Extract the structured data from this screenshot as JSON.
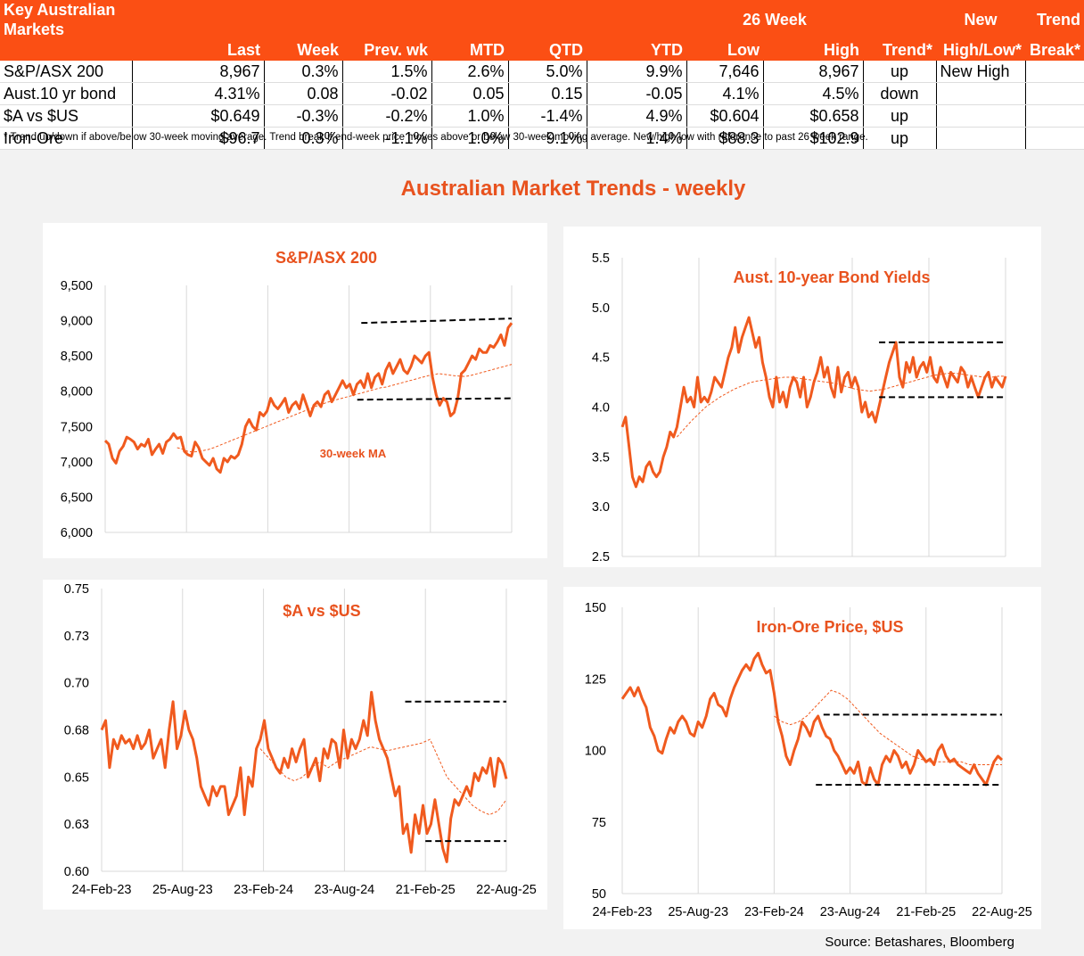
{
  "table": {
    "header_title": "Key Australian Markets",
    "header_26week": "26 Week",
    "col_last": "Last",
    "col_week": "Week",
    "col_prev": "Prev. wk",
    "col_mtd": "MTD",
    "col_qtd": "QTD",
    "col_ytd": "YTD",
    "col_low": "Low",
    "col_high": "High",
    "col_trend": "Trend*",
    "col_newhl_1": "New",
    "col_newhl_2": "High/Low*",
    "col_break_1": "Trend",
    "col_break_2": "Break*",
    "rows": [
      {
        "name": "S&P/ASX 200",
        "last": "8,967",
        "week": "0.3%",
        "prev": "1.5%",
        "mtd": "2.6%",
        "qtd": "5.0%",
        "ytd": "9.9%",
        "low": "7,646",
        "high": "8,967",
        "trend": "up",
        "newhl": "New High",
        "brk": ""
      },
      {
        "name": "Aust.10 yr bond",
        "last": "4.31%",
        "week": "0.08",
        "prev": "-0.02",
        "mtd": "0.05",
        "qtd": "0.15",
        "ytd": "-0.05",
        "low": "4.1%",
        "high": "4.5%",
        "trend": "down",
        "newhl": "",
        "brk": ""
      },
      {
        "name": "$A vs $US",
        "last": "$0.649",
        "week": "-0.3%",
        "prev": "-0.2%",
        "mtd": "1.0%",
        "qtd": "-1.4%",
        "ytd": "4.9%",
        "low": "$0.604",
        "high": "$0.658",
        "trend": "up",
        "newhl": "",
        "brk": ""
      },
      {
        "name": "Iron-Ore",
        "last": "$96.7",
        "week": "0.3%",
        "prev": "-1.1%",
        "mtd": "1.0%",
        "qtd": "9.1%",
        "ytd": "1.4%",
        "low": "$88.3",
        "high": "$102.9",
        "trend": "up",
        "newhl": "",
        "brk": ""
      }
    ],
    "footnote": "*  Trend up/down if above/below 30-week moving average. Trend break if end-week price moves above or below 30-week moving average.  New/high low with reference to past 26 week range."
  },
  "main_title": "Australian Market Trends - weekly",
  "source": "Source:  Betashares, Bloomberg",
  "colors": {
    "accent": "#fb4f14",
    "series": "#f05a1e",
    "ma": "#f05a1e",
    "band": "#000000",
    "grid": "#d9d9d9"
  },
  "chart_data": [
    {
      "type": "line",
      "title": "S&P/ASX 200",
      "annotation": "30-week MA",
      "y_ticks": [
        "9,500",
        "9,000",
        "8,500",
        "8,000",
        "7,500",
        "7,000",
        "6,500",
        "6,000"
      ],
      "ylim": [
        6000,
        9500
      ],
      "x_ticks": [],
      "x_gridlines": [
        0.2,
        0.4,
        0.6,
        0.8
      ],
      "points": [
        7300,
        7250,
        7050,
        6980,
        7150,
        7220,
        7350,
        7320,
        7280,
        7180,
        7250,
        7220,
        7320,
        7100,
        7180,
        7250,
        7120,
        7280,
        7320,
        7400,
        7330,
        7350,
        7150,
        7100,
        7080,
        7280,
        7200,
        7050,
        7000,
        6950,
        7050,
        6900,
        6850,
        7050,
        7000,
        7080,
        7050,
        7100,
        7250,
        7500,
        7600,
        7500,
        7450,
        7700,
        7650,
        7720,
        7900,
        7800,
        7750,
        7820,
        7900,
        7700,
        7800,
        7850,
        7750,
        7950,
        7800,
        7650,
        7800,
        7850,
        7780,
        7950,
        8000,
        7850,
        7950,
        8050,
        8150,
        8050,
        8100,
        7950,
        8100,
        8150,
        8050,
        8250,
        8050,
        8200,
        8250,
        8100,
        8300,
        8400,
        8250,
        8350,
        8450,
        8300,
        8250,
        8350,
        8500,
        8450,
        8400,
        8500,
        8550,
        8200,
        7950,
        7800,
        7900,
        7850,
        7650,
        7700,
        7900,
        8250,
        8300,
        8400,
        8500,
        8450,
        8600,
        8550,
        8550,
        8650,
        8620,
        8700,
        8800,
        8650,
        8900,
        8967
      ],
      "ma": [
        7200,
        7180,
        7150,
        7140,
        7145,
        7160,
        7175,
        7200,
        7230,
        7260,
        7290,
        7320,
        7350,
        7380,
        7410,
        7440,
        7470,
        7500,
        7530,
        7560,
        7590,
        7620,
        7650,
        7680,
        7710,
        7740,
        7770,
        7800,
        7825,
        7850,
        7870,
        7890,
        7910,
        7930,
        7950,
        7970,
        7990,
        8010,
        8030,
        8050,
        8060,
        8080,
        8100,
        8120,
        8140,
        8160,
        8180,
        8200,
        8220,
        8230,
        8250,
        8240,
        8230,
        8220,
        8215,
        8210,
        8220,
        8240,
        8260,
        8280,
        8300,
        8320,
        8340,
        8360,
        8380
      ],
      "ma_start": 20,
      "bands": [
        {
          "value": 8967,
          "start": 0.63,
          "value_end": 9030
        },
        {
          "value": 7880,
          "start": 0.62,
          "value_end": 7900
        }
      ]
    },
    {
      "type": "line",
      "title": "Aust. 10-year Bond Yields",
      "y_ticks": [
        "5.5",
        "5.0",
        "4.5",
        "4.0",
        "3.5",
        "3.0",
        "2.5"
      ],
      "ylim": [
        2.5,
        5.5
      ],
      "x_ticks": [],
      "x_gridlines": [
        0.2,
        0.4,
        0.6,
        0.8
      ],
      "points": [
        3.8,
        3.9,
        3.6,
        3.3,
        3.2,
        3.3,
        3.25,
        3.4,
        3.45,
        3.35,
        3.3,
        3.35,
        3.5,
        3.6,
        3.75,
        3.7,
        3.8,
        4.0,
        4.2,
        4.05,
        4.1,
        4.0,
        4.3,
        4.05,
        4.1,
        4.05,
        4.15,
        4.3,
        4.25,
        4.2,
        4.35,
        4.5,
        4.6,
        4.8,
        4.55,
        4.7,
        4.8,
        4.9,
        4.75,
        4.6,
        4.7,
        4.45,
        4.3,
        4.1,
        4.0,
        4.3,
        4.05,
        4.15,
        4.0,
        4.2,
        4.3,
        4.25,
        4.1,
        4.3,
        4.0,
        4.1,
        4.25,
        4.35,
        4.5,
        4.3,
        4.4,
        4.2,
        4.1,
        4.4,
        4.15,
        4.3,
        4.35,
        4.2,
        4.3,
        4.2,
        3.95,
        4.05,
        3.9,
        3.95,
        3.85,
        4.0,
        4.15,
        4.3,
        4.45,
        4.55,
        4.65,
        4.3,
        4.2,
        4.45,
        4.35,
        4.5,
        4.3,
        4.4,
        4.45,
        4.35,
        4.5,
        4.3,
        4.25,
        4.4,
        4.3,
        4.2,
        4.35,
        4.3,
        4.25,
        4.4,
        4.35,
        4.2,
        4.3,
        4.2,
        4.1,
        4.2,
        4.3,
        4.35,
        4.2,
        4.3,
        4.25,
        4.2,
        4.31
      ],
      "ma": [
        3.7,
        3.78,
        3.86,
        3.93,
        4.0,
        4.05,
        4.1,
        4.14,
        4.18,
        4.21,
        4.24,
        4.26,
        4.27,
        4.28,
        4.29,
        4.3,
        4.3,
        4.29,
        4.28,
        4.27,
        4.26,
        4.25,
        4.24,
        4.22,
        4.2,
        4.18,
        4.17,
        4.16,
        4.17,
        4.18,
        4.2,
        4.22,
        4.24,
        4.26,
        4.28,
        4.3,
        4.32,
        4.33,
        4.34,
        4.34,
        4.33,
        4.32,
        4.31,
        4.3,
        4.3,
        4.31,
        4.31
      ],
      "ma_start": 16,
      "bands": [
        {
          "value": 4.65,
          "start": 0.67,
          "value_end": 4.65
        },
        {
          "value": 4.1,
          "start": 0.67,
          "value_end": 4.1
        }
      ]
    },
    {
      "type": "line",
      "title": "$A vs $US",
      "y_ticks": [
        "0.75",
        "0.73",
        "0.70",
        "0.68",
        "0.65",
        "0.63",
        "0.60"
      ],
      "ylim": [
        0.6,
        0.75
      ],
      "x_ticks": [
        "24-Feb-23",
        "25-Aug-23",
        "23-Feb-24",
        "23-Aug-24",
        "21-Feb-25",
        "22-Aug-25"
      ],
      "x_gridlines": [
        0.2,
        0.4,
        0.6,
        0.8
      ],
      "points": [
        0.675,
        0.68,
        0.655,
        0.67,
        0.665,
        0.672,
        0.668,
        0.67,
        0.665,
        0.672,
        0.665,
        0.668,
        0.675,
        0.66,
        0.665,
        0.67,
        0.655,
        0.675,
        0.69,
        0.665,
        0.672,
        0.685,
        0.675,
        0.67,
        0.66,
        0.645,
        0.64,
        0.635,
        0.645,
        0.64,
        0.645,
        0.645,
        0.63,
        0.635,
        0.64,
        0.655,
        0.63,
        0.65,
        0.645,
        0.665,
        0.67,
        0.68,
        0.665,
        0.66,
        0.655,
        0.652,
        0.66,
        0.655,
        0.665,
        0.658,
        0.665,
        0.67,
        0.65,
        0.655,
        0.66,
        0.648,
        0.665,
        0.66,
        0.67,
        0.668,
        0.655,
        0.675,
        0.66,
        0.67,
        0.665,
        0.67,
        0.68,
        0.672,
        0.695,
        0.68,
        0.67,
        0.665,
        0.66,
        0.65,
        0.64,
        0.645,
        0.62,
        0.625,
        0.61,
        0.63,
        0.62,
        0.635,
        0.62,
        0.625,
        0.638,
        0.625,
        0.612,
        0.605,
        0.628,
        0.638,
        0.635,
        0.64,
        0.645,
        0.64,
        0.652,
        0.648,
        0.655,
        0.652,
        0.66,
        0.645,
        0.66,
        0.657,
        0.649
      ],
      "ma": [
        0.665,
        0.66,
        0.655,
        0.65,
        0.648,
        0.65,
        0.655,
        0.658,
        0.655,
        0.658,
        0.66,
        0.662,
        0.664,
        0.666,
        0.665,
        0.664,
        0.665,
        0.666,
        0.667,
        0.668,
        0.67,
        0.66,
        0.65,
        0.645,
        0.64,
        0.635,
        0.632,
        0.63,
        0.632,
        0.638
      ],
      "ma_start": 40,
      "bands": [
        {
          "value": 0.69,
          "start": 0.75,
          "value_end": 0.69
        },
        {
          "value": 0.616,
          "start": 0.8,
          "value_end": 0.616
        }
      ]
    },
    {
      "type": "line",
      "title": "Iron-Ore Price, $US",
      "y_ticks": [
        "150",
        "125",
        "100",
        "75",
        "50"
      ],
      "ylim": [
        50,
        150
      ],
      "x_ticks": [
        "24-Feb-23",
        "25-Aug-23",
        "23-Feb-24",
        "23-Aug-24",
        "21-Feb-25",
        "22-Aug-25"
      ],
      "x_gridlines": [
        0.2,
        0.4,
        0.6,
        0.8
      ],
      "points": [
        118,
        120,
        122,
        119,
        122,
        118,
        115,
        108,
        105,
        100,
        99,
        104,
        108,
        106,
        110,
        112,
        110,
        106,
        105,
        110,
        108,
        112,
        118,
        120,
        116,
        115,
        112,
        118,
        122,
        125,
        128,
        130,
        128,
        132,
        134,
        130,
        127,
        128,
        120,
        110,
        105,
        98,
        95,
        100,
        104,
        110,
        108,
        105,
        110,
        112,
        108,
        105,
        104,
        100,
        98,
        95,
        92,
        94,
        92,
        96,
        89,
        88,
        94,
        90,
        88,
        95,
        98,
        96,
        100,
        98,
        94,
        96,
        92,
        95,
        100,
        98,
        96,
        97,
        95,
        100,
        102,
        98,
        96,
        97,
        95,
        94,
        93,
        92,
        95,
        92,
        90,
        88,
        92,
        96,
        98,
        96.7
      ],
      "ma": [
        112,
        110,
        109,
        110,
        112,
        115,
        118,
        121,
        120,
        118,
        115,
        112,
        109,
        106,
        104,
        102,
        100,
        98,
        97,
        96,
        96,
        96,
        96,
        96,
        95,
        95,
        95,
        95,
        95
      ],
      "ma_start": 38,
      "bands": [
        {
          "value": 112.5,
          "start": 0.53,
          "value_end": 112.5
        },
        {
          "value": 88,
          "start": 0.51,
          "value_end": 88
        }
      ]
    }
  ]
}
